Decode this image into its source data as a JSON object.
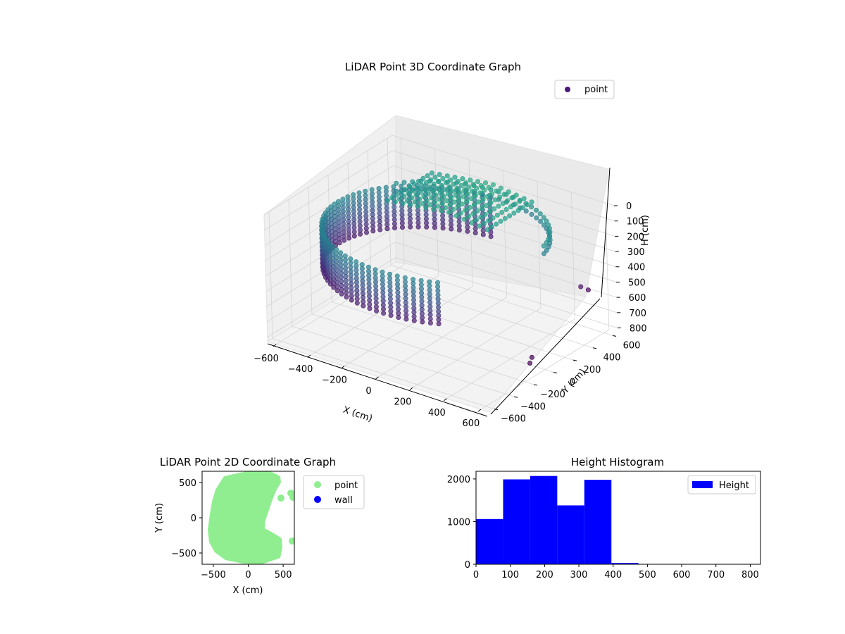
{
  "chart_data": [
    {
      "type": "scatter",
      "projection": "3d",
      "title": "LiDAR Point 3D Coordinate Graph",
      "xlabel": "X (cm)",
      "ylabel": "Y (cm)",
      "zlabel": "H (cm)",
      "x_ticks": [
        "−600",
        "−400",
        "−200",
        "0",
        "200",
        "400",
        "600"
      ],
      "y_ticks": [
        "−600",
        "−400",
        "−200",
        "0",
        "200",
        "400",
        "600"
      ],
      "z_ticks": [
        "0",
        "100",
        "200",
        "300",
        "400",
        "500",
        "600",
        "700",
        "800"
      ],
      "xlim": [
        -650,
        650
      ],
      "ylim": [
        -650,
        650
      ],
      "zlim": [
        0,
        830
      ],
      "z_inverted": true,
      "grid": true,
      "legend": {
        "label": "point",
        "color": "#4b1877",
        "placement": "top-right"
      },
      "colormap": "viridis",
      "series": [
        {
          "name": "point",
          "structure": "partial cylindrical wall with ceiling cluster",
          "radius_approx": 600,
          "height_range": [
            150,
            450
          ]
        }
      ]
    },
    {
      "type": "scatter",
      "title": "LiDAR Point 2D Coordinate Graph",
      "xlabel": "X (cm)",
      "ylabel": "Y (cm)",
      "x_ticks": [
        "−500",
        "0",
        "500"
      ],
      "y_ticks": [
        "−500",
        "0",
        "500"
      ],
      "xlim": [
        -660,
        660
      ],
      "ylim": [
        -660,
        660
      ],
      "legend": {
        "placement": "outside-right"
      },
      "series": [
        {
          "name": "point",
          "color": "#90ee90"
        },
        {
          "name": "wall",
          "color": "#0000ff"
        }
      ]
    },
    {
      "type": "bar",
      "title": "Height Histogram",
      "xlabel": "",
      "ylabel": "",
      "x_ticks": [
        "0",
        "100",
        "200",
        "300",
        "400",
        "500",
        "600",
        "700",
        "800"
      ],
      "y_ticks": [
        "0",
        "1000",
        "2000"
      ],
      "xlim": [
        0,
        830
      ],
      "ylim": [
        0,
        2180
      ],
      "bin_edges": [
        0,
        79,
        158,
        237,
        316,
        395,
        474,
        553,
        632,
        711,
        790
      ],
      "values": [
        1060,
        1990,
        2070,
        1380,
        1980,
        30,
        0,
        0,
        0,
        0
      ],
      "color": "#0000ff",
      "legend": {
        "label": "Height",
        "placement": "top-right"
      }
    }
  ]
}
